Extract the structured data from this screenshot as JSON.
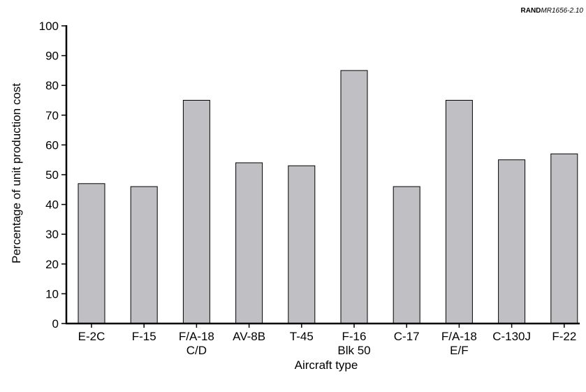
{
  "credit": {
    "bold": "RAND",
    "italic": "MR1656-2.10"
  },
  "chart_data": {
    "type": "bar",
    "categories": [
      [
        "E-2C"
      ],
      [
        "F-15"
      ],
      [
        "F/A-18",
        "C/D"
      ],
      [
        "AV-8B"
      ],
      [
        "T-45"
      ],
      [
        "F-16",
        "Blk 50"
      ],
      [
        "C-17"
      ],
      [
        "F/A-18",
        "E/F"
      ],
      [
        "C-130J"
      ],
      [
        "F-22"
      ]
    ],
    "values": [
      47,
      46,
      75,
      54,
      53,
      85,
      46,
      75,
      55,
      57
    ],
    "xlabel": "Aircraft type",
    "ylabel": "Percentage of unit production cost",
    "ylim": [
      0,
      100
    ],
    "yticks": [
      0,
      10,
      20,
      30,
      40,
      50,
      60,
      70,
      80,
      90,
      100
    ],
    "grid": false,
    "colors": {
      "bar_fill": "#c0c0c4",
      "bar_stroke": "#000000",
      "axis": "#000000"
    }
  }
}
